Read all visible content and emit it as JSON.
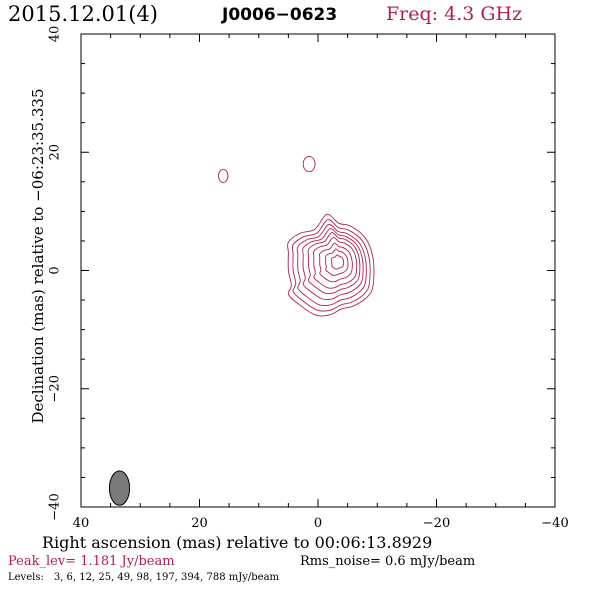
{
  "header": {
    "date": "2015.12.01(4)",
    "source": "J0006−0623",
    "freq": "Freq: 4.3 GHz"
  },
  "footer": {
    "peak": "Peak_lev=  1.181 Jy/beam",
    "rms": "Rms_noise=  0.6 mJy/beam",
    "levels_label": "Levels:",
    "levels_values": "3,   6,  12,  25,  49,  98, 197, 394, 788 mJy/beam"
  },
  "colors": {
    "contour": "#b0204c",
    "beam_fill": "#7a7a7a"
  },
  "chart_data": {
    "type": "contour",
    "xlabel": "Right ascension (mas) relative to 00:06:13.8929",
    "ylabel": "Declination (mas) relative to −06:23:35.335",
    "xlim": [
      40,
      -40
    ],
    "ylim": [
      -40,
      40
    ],
    "x_reversed": true,
    "xticks": [
      40,
      20,
      0,
      -20,
      -40
    ],
    "yticks": [
      -40,
      -20,
      0,
      20,
      40
    ],
    "xtick_labels": [
      "40",
      "20",
      "0",
      "−20",
      "−40"
    ],
    "ytick_labels": [
      "−40",
      "−20",
      "0",
      "20",
      "40"
    ],
    "levels_mJy": [
      3,
      6,
      12,
      25,
      49,
      98,
      197,
      394,
      788
    ],
    "beam": {
      "x": 33.5,
      "y": -36.8,
      "major_mas": 5.8,
      "minor_mas": 3.4,
      "pa_deg": 0
    },
    "main_source": {
      "base_contour": [
        [
          -1.5,
          9.5
        ],
        [
          -3.5,
          8.0
        ],
        [
          -5.5,
          7.5
        ],
        [
          -8.0,
          5.5
        ],
        [
          -9.3,
          2.0
        ],
        [
          -9.3,
          -2.5
        ],
        [
          -8.3,
          -4.5
        ],
        [
          -6.0,
          -6.0
        ],
        [
          -4.0,
          -6.5
        ],
        [
          -2.0,
          -7.5
        ],
        [
          0.5,
          -7.5
        ],
        [
          3.5,
          -5.5
        ],
        [
          5.0,
          -4.0
        ],
        [
          4.5,
          -2.5
        ],
        [
          5.0,
          0.0
        ],
        [
          5.0,
          3.0
        ],
        [
          5.0,
          4.8
        ],
        [
          3.0,
          6.3
        ],
        [
          0.5,
          7.0
        ]
      ],
      "centers": [
        [
          0.0,
          0.5
        ],
        [
          -0.3,
          0.5
        ],
        [
          -0.6,
          0.6
        ],
        [
          -1.0,
          0.8
        ],
        [
          -1.4,
          1.0
        ],
        [
          -1.8,
          1.1
        ],
        [
          -2.2,
          1.2
        ],
        [
          -2.6,
          1.3
        ],
        [
          -3.0,
          1.4
        ]
      ],
      "scales": [
        1.0,
        0.9,
        0.8,
        0.7,
        0.6,
        0.5,
        0.38,
        0.26,
        0.14
      ]
    },
    "minor_sources": [
      {
        "x": 16.0,
        "y": 16.0,
        "rx": 0.8,
        "ry": 1.1
      },
      {
        "x": 1.5,
        "y": 18.0,
        "rx": 1.0,
        "ry": 1.3
      }
    ]
  }
}
